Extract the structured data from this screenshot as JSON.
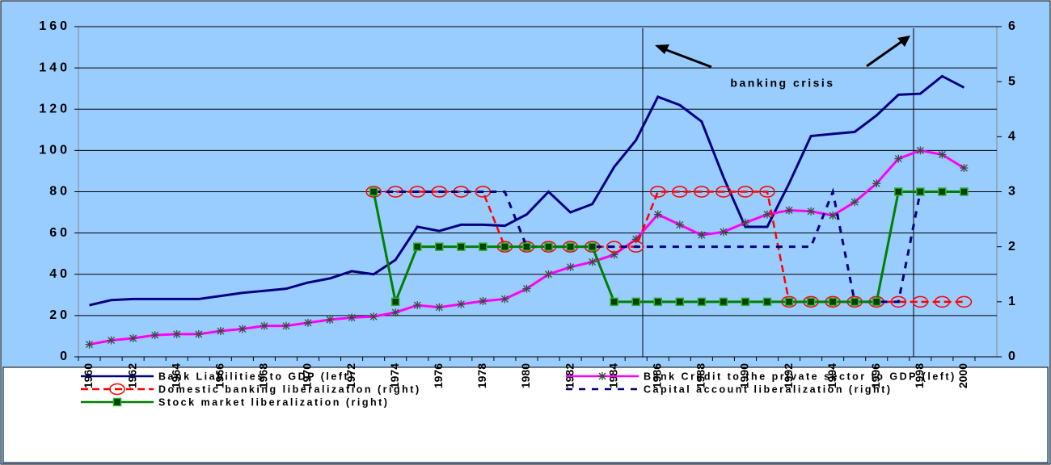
{
  "chart_data": {
    "type": "line",
    "annotation": "banking crisis",
    "categories": [
      "1960",
      null,
      "1962",
      null,
      "1964",
      null,
      "1966",
      null,
      "1968",
      null,
      "1970",
      null,
      "1972",
      null,
      "1974",
      null,
      "1976",
      null,
      "1978",
      null,
      "1980",
      null,
      "1982",
      null,
      "1984",
      null,
      "1986",
      null,
      "1988",
      null,
      "1990",
      null,
      "1992",
      null,
      "1994",
      null,
      "1996",
      null,
      "1998",
      null,
      "2000",
      null
    ],
    "ylim": [
      0,
      160
    ],
    "yticks": [
      0,
      20,
      40,
      60,
      80,
      100,
      120,
      140,
      160
    ],
    "y2lim": [
      0,
      6
    ],
    "y2ticks": [
      0,
      1,
      2,
      3,
      4,
      5,
      6
    ],
    "grid": true,
    "series": [
      {
        "name": "Bank Liabilities to GDP (left)",
        "color": "#000080",
        "values": [
          25,
          27.5,
          28,
          28,
          28,
          28,
          29.5,
          31,
          32,
          33,
          36,
          38,
          41.5,
          40,
          47,
          63,
          61,
          64,
          64,
          63.5,
          69,
          80,
          70,
          74,
          92,
          105,
          126,
          122,
          114,
          87,
          63,
          63,
          84,
          107,
          108,
          109,
          117,
          127,
          127.5,
          136,
          130.5,
          null
        ]
      },
      {
        "name": "Bank Credit to the private sector to GDP (left)",
        "color": "#ff00ff",
        "marker": "star",
        "values": [
          6,
          8,
          9,
          10.5,
          11,
          11,
          12.5,
          13.5,
          15,
          15,
          16.5,
          18,
          19,
          19.5,
          21.5,
          25,
          24,
          25.5,
          27,
          28,
          33,
          40,
          43.5,
          46,
          49.5,
          57,
          69,
          64,
          59,
          60.5,
          65,
          69,
          71,
          70.5,
          68.5,
          75,
          84,
          96,
          100,
          98,
          91.5,
          null
        ]
      },
      {
        "name": "Domestic banking liberalization (right)",
        "color": "#ff0000",
        "marker": "circle",
        "dash": true,
        "axis": "y2",
        "values": [
          null,
          null,
          null,
          null,
          null,
          null,
          null,
          null,
          null,
          null,
          null,
          null,
          null,
          3,
          3,
          3,
          3,
          3,
          3,
          2,
          2,
          2,
          2,
          2,
          2,
          2,
          3,
          3,
          3,
          3,
          3,
          3,
          1,
          1,
          1,
          1,
          1,
          1,
          1,
          1,
          1,
          null
        ]
      },
      {
        "name": "Capital account liberalization (right)",
        "color": "#000080",
        "dash": true,
        "axis": "y2",
        "values": [
          null,
          null,
          null,
          null,
          null,
          null,
          null,
          null,
          null,
          null,
          null,
          null,
          null,
          3,
          3,
          3,
          3,
          3,
          3,
          3,
          2,
          2,
          2,
          2,
          2,
          2,
          2,
          2,
          2,
          2,
          2,
          2,
          2,
          2,
          3,
          1,
          1,
          1,
          3,
          3,
          3,
          null
        ]
      },
      {
        "name": "Stock market liberalization (right)",
        "color": "#008000",
        "marker": "square",
        "axis": "y2",
        "values": [
          null,
          null,
          null,
          null,
          null,
          null,
          null,
          null,
          null,
          null,
          null,
          null,
          null,
          3,
          1,
          2,
          2,
          2,
          2,
          2,
          2,
          2,
          2,
          2,
          1,
          1,
          1,
          1,
          1,
          1,
          1,
          1,
          1,
          1,
          1,
          1,
          1,
          3,
          3,
          3,
          3,
          null
        ]
      }
    ]
  }
}
